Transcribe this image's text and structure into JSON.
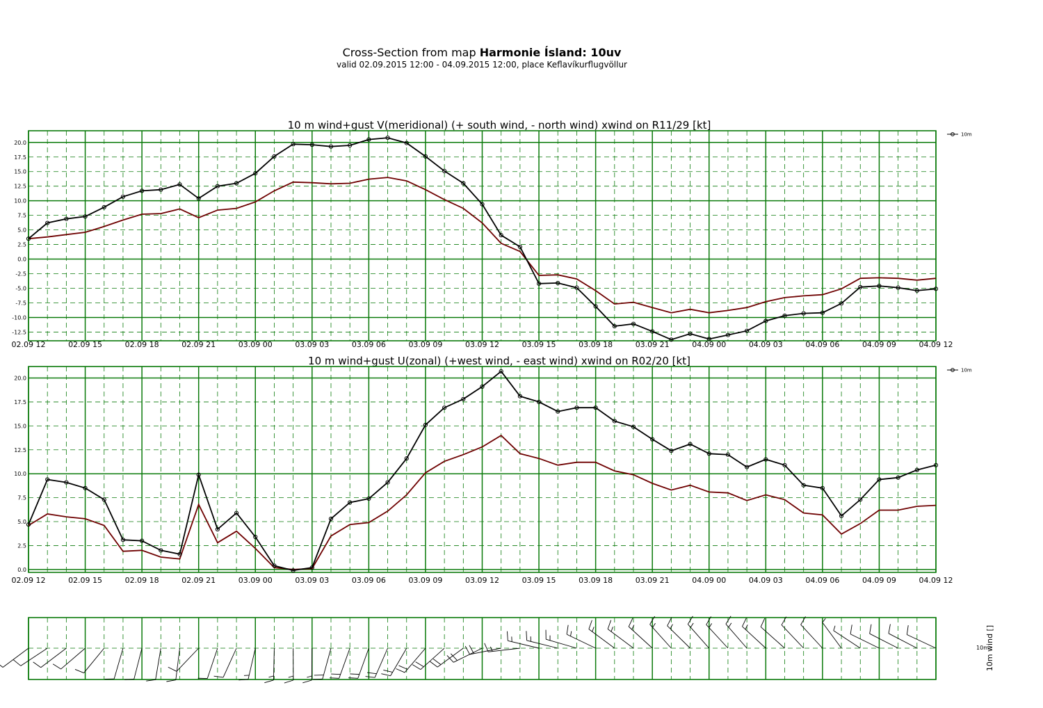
{
  "title": {
    "prefix": "Cross-Section from map ",
    "bold": "Harmonie Ísland: 10uv",
    "subtitle": "valid 02.09.2015 12:00 - 04.09.2015 12:00, place Keflavíkurflugvöllur"
  },
  "colors": {
    "grid": "#0a7a0a",
    "mean_line": "#000000",
    "gust_line": "#6e0000"
  },
  "x_tick_labels": [
    "02.09 12",
    "02.09 15",
    "02.09 18",
    "02.09 21",
    "03.09 00",
    "03.09 03",
    "03.09 06",
    "03.09 09",
    "03.09 12",
    "03.09 15",
    "03.09 18",
    "03.09 21",
    "04.09 00",
    "04.09 03",
    "04.09 06",
    "04.09 09",
    "04.09 12"
  ],
  "chart_data": [
    {
      "type": "line",
      "title": "10 m wind+gust V(meridional) (+ south wind, - north wind) xwind on R11/29 [kt]",
      "x_range_hours": [
        0,
        48
      ],
      "ylim": [
        -14.0,
        22.0
      ],
      "y_ticks": [
        20.0,
        17.5,
        15.0,
        12.5,
        10.0,
        7.5,
        5.0,
        2.5,
        0.0,
        -2.5,
        -5.0,
        -7.5,
        -10.0,
        -12.5
      ],
      "y_tick_labels": [
        "20.0",
        "17.5",
        "15.0",
        "12.5",
        "10.0",
        "7.5",
        "5.0",
        "2.5",
        "0.0",
        "-2.5",
        "-5.0",
        "-7.5",
        "-10.0",
        "-12.5"
      ],
      "legend": [
        "10m"
      ],
      "legend_position": "right",
      "grid": true,
      "series": [
        {
          "name": "10m",
          "marker": "circle",
          "values": [
            3.5,
            6.2,
            6.9,
            7.3,
            8.9,
            10.7,
            11.7,
            11.9,
            12.8,
            10.4,
            12.5,
            13.0,
            14.7,
            17.6,
            19.7,
            19.6,
            19.3,
            19.5,
            20.5,
            20.8,
            19.9,
            17.6,
            15.1,
            13.0,
            9.4,
            4.1,
            2.1,
            -4.2,
            -4.1,
            -4.9,
            -8.1,
            -11.5,
            -11.1,
            -12.4,
            -13.8,
            -12.8,
            -13.7,
            -13.0,
            -12.3,
            -10.6,
            -9.7,
            -9.3,
            -9.2,
            -7.6,
            -4.8,
            -4.6,
            -4.9,
            -5.4,
            -5.1
          ]
        },
        {
          "name": "",
          "marker": "none",
          "values": [
            3.5,
            3.8,
            4.2,
            4.6,
            5.6,
            6.7,
            7.7,
            7.8,
            8.6,
            7.1,
            8.4,
            8.7,
            9.8,
            11.7,
            13.2,
            13.1,
            12.9,
            13.0,
            13.7,
            14.0,
            13.4,
            11.9,
            10.2,
            8.7,
            6.2,
            2.7,
            1.3,
            -2.8,
            -2.7,
            -3.4,
            -5.4,
            -7.7,
            -7.4,
            -8.3,
            -9.2,
            -8.6,
            -9.2,
            -8.8,
            -8.3,
            -7.3,
            -6.6,
            -6.3,
            -6.1,
            -5.1,
            -3.3,
            -3.2,
            -3.3,
            -3.6,
            -3.3
          ]
        }
      ]
    },
    {
      "type": "line",
      "title": "10 m wind+gust U(zonal) (+west wind, - east wind) xwind on R02/20 [kt]",
      "x_range_hours": [
        0,
        48
      ],
      "ylim": [
        -0.3,
        21.2
      ],
      "y_ticks": [
        20.0,
        17.5,
        15.0,
        12.5,
        10.0,
        7.5,
        5.0,
        2.5,
        0.0
      ],
      "y_tick_labels": [
        "20.0",
        "17.5",
        "15.0",
        "12.5",
        "10.0",
        "7.5",
        "5.0",
        "2.5",
        "0.0"
      ],
      "legend": [
        "10m"
      ],
      "legend_position": "right",
      "grid": true,
      "series": [
        {
          "name": "10m",
          "marker": "circle",
          "values": [
            4.7,
            9.4,
            9.1,
            8.5,
            7.3,
            3.1,
            3.0,
            2.0,
            1.6,
            9.9,
            4.2,
            5.9,
            3.4,
            0.4,
            -0.1,
            0.2,
            5.3,
            7.0,
            7.4,
            9.1,
            11.6,
            15.1,
            16.9,
            17.8,
            19.1,
            20.7,
            18.1,
            17.5,
            16.5,
            16.9,
            16.9,
            15.5,
            14.9,
            13.6,
            12.4,
            13.1,
            12.1,
            12.0,
            10.7,
            11.5,
            10.9,
            8.8,
            8.5,
            5.6,
            7.3,
            9.4,
            9.6,
            10.4,
            10.9
          ]
        },
        {
          "name": "",
          "marker": "none",
          "values": [
            4.6,
            5.8,
            5.5,
            5.3,
            4.6,
            1.9,
            2.0,
            1.3,
            1.1,
            6.8,
            2.8,
            4.0,
            2.2,
            0.2,
            0.0,
            0.1,
            3.5,
            4.7,
            4.9,
            6.1,
            7.8,
            10.1,
            11.3,
            12.0,
            12.8,
            14.0,
            12.1,
            11.6,
            10.9,
            11.2,
            11.2,
            10.3,
            9.9,
            9.0,
            8.3,
            8.8,
            8.1,
            8.0,
            7.2,
            7.8,
            7.3,
            5.9,
            5.7,
            3.7,
            4.8,
            6.2,
            6.2,
            6.6,
            6.7
          ]
        }
      ]
    },
    {
      "type": "other",
      "title": "",
      "y_axis_label": "10m wind []",
      "legend": [
        "10m"
      ],
      "levels": [
        "10m"
      ],
      "series": [
        {
          "name": "10m wind barbs",
          "u_kt": [
            4.7,
            9.4,
            9.1,
            8.5,
            7.3,
            3.1,
            3.0,
            2.0,
            1.6,
            9.9,
            4.2,
            5.9,
            3.4,
            0.4,
            -0.1,
            0.2,
            5.3,
            7.0,
            7.4,
            9.1,
            11.6,
            15.1,
            16.9,
            17.8,
            19.1,
            20.7,
            18.1,
            17.5,
            16.5,
            16.9,
            16.9,
            15.5,
            14.9,
            13.6,
            12.4,
            13.1,
            12.1,
            12.0,
            10.7,
            11.5,
            10.9,
            8.8,
            8.5,
            5.6,
            7.3,
            9.4,
            9.6,
            10.4,
            10.9
          ],
          "v_kt": [
            3.5,
            6.2,
            6.9,
            7.3,
            8.9,
            10.7,
            11.7,
            11.9,
            12.8,
            10.4,
            12.5,
            13.0,
            14.7,
            17.6,
            19.7,
            19.6,
            19.3,
            19.5,
            20.5,
            20.8,
            19.9,
            17.6,
            15.1,
            13.0,
            9.4,
            4.1,
            2.1,
            -4.2,
            -4.1,
            -4.9,
            -8.1,
            -11.5,
            -11.1,
            -12.4,
            -13.8,
            -12.8,
            -13.7,
            -13.0,
            -12.3,
            -10.6,
            -9.7,
            -9.3,
            -9.2,
            -7.6,
            -4.8,
            -4.6,
            -4.9,
            -5.4,
            -5.1
          ]
        }
      ]
    }
  ]
}
